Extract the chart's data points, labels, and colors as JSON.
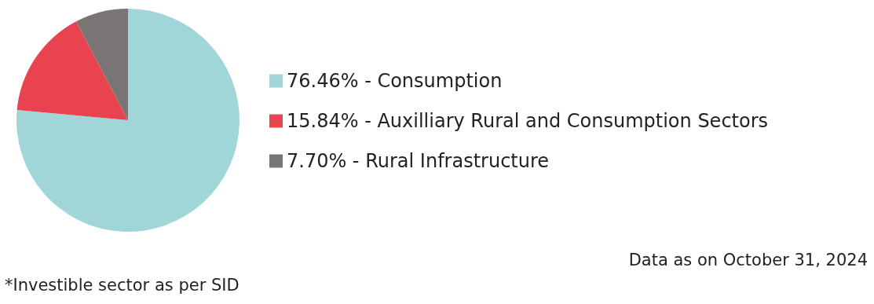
{
  "chart_data": {
    "type": "pie",
    "categories": [
      "76.46% - Consumption",
      "15.84% - Auxilliary Rural and Consumption Sectors",
      "7.70% - Rural Infrastructure"
    ],
    "values": [
      76.46,
      15.84,
      7.7
    ],
    "colors": [
      "#a0d6d8",
      "#e8434f",
      "#797574"
    ],
    "legend": "right",
    "annotations": [
      "Data as on October 31, 2024",
      "*Investible sector as per SID"
    ]
  }
}
